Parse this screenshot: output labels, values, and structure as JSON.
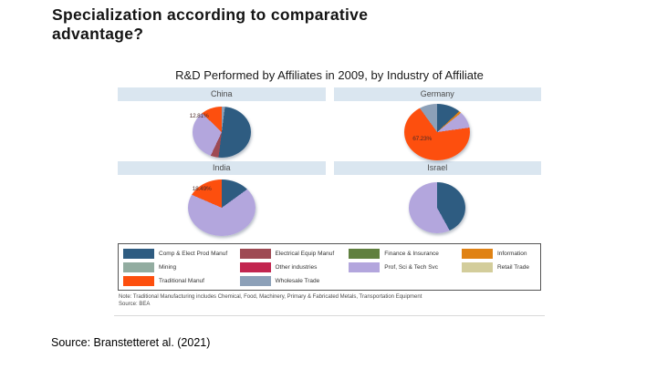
{
  "slide": {
    "title": "Specialization according to comparative advantage?",
    "source": "Source: Branstetteret al. (2021)"
  },
  "figure": {
    "title": "R&D Performed by Affiliates in 2009, by Industry of Affiliate",
    "note_line1": "Note: Traditional Manufacturing includes Chemical, Food, Machinery, Primary & Fabricated Metals, Transportation Equipment",
    "note_line2": "Source: BEA",
    "header_bg": "#dae6f0"
  },
  "legend": {
    "columns": [
      [
        {
          "label": "Comp & Elect Prod Manuf",
          "color": "#2e5c81"
        },
        {
          "label": "Mining",
          "color": "#92aca0"
        },
        {
          "label": "Traditional Manuf",
          "color": "#fd4f0e"
        }
      ],
      [
        {
          "label": "Electrical Equip Manuf",
          "color": "#9e4a53"
        },
        {
          "label": "Other industries",
          "color": "#c2254f"
        },
        {
          "label": "Wholesale Trade",
          "color": "#8ca0b8"
        }
      ],
      [
        {
          "label": "Finance & Insurance",
          "color": "#60803f"
        },
        {
          "label": "Prof, Sci & Tech Svc",
          "color": "#b3a6dd"
        }
      ],
      [
        {
          "label": "Information",
          "color": "#e08214"
        },
        {
          "label": "Retail Trade",
          "color": "#d3cd9b"
        }
      ]
    ]
  },
  "chart_data": [
    {
      "type": "pie",
      "title": "China",
      "label": "12.81%",
      "slices": [
        {
          "name": "Wholesale Trade",
          "value": 2.0,
          "color": "#8ca0b8"
        },
        {
          "name": "Comp & Elect Prod Manuf",
          "value": 50.0,
          "color": "#2e5c81"
        },
        {
          "name": "Electrical Equip Manuf",
          "value": 5.0,
          "color": "#9e4a53"
        },
        {
          "name": "Prof, Sci & Tech Svc",
          "value": 30.19,
          "color": "#b3a6dd"
        },
        {
          "name": "Traditional Manuf",
          "value": 12.81,
          "color": "#fd4f0e"
        }
      ]
    },
    {
      "type": "pie",
      "title": "Germany",
      "label": "67.23%",
      "slices": [
        {
          "name": "Comp & Elect Prod Manuf",
          "value": 13.0,
          "color": "#2e5c81"
        },
        {
          "name": "Information",
          "value": 1.2,
          "color": "#e08214"
        },
        {
          "name": "Prof, Sci & Tech Svc",
          "value": 8.6,
          "color": "#b3a6dd"
        },
        {
          "name": "Traditional Manuf",
          "value": 67.23,
          "color": "#fd4f0e"
        },
        {
          "name": "Wholesale Trade",
          "value": 9.97,
          "color": "#8ca0b8"
        }
      ]
    },
    {
      "type": "pie",
      "title": "India",
      "label": "18.49%",
      "slices": [
        {
          "name": "Comp & Elect Prod Manuf",
          "value": 15.0,
          "color": "#2e5c81"
        },
        {
          "name": "Prof, Sci & Tech Svc",
          "value": 66.51,
          "color": "#b3a6dd"
        },
        {
          "name": "Traditional Manuf",
          "value": 18.49,
          "color": "#fd4f0e"
        }
      ]
    },
    {
      "type": "pie",
      "title": "Israel",
      "label": "",
      "slices": [
        {
          "name": "Comp & Elect Prod Manuf",
          "value": 42.0,
          "color": "#2e5c81"
        },
        {
          "name": "Prof, Sci & Tech Svc",
          "value": 58.0,
          "color": "#b3a6dd"
        }
      ]
    }
  ]
}
